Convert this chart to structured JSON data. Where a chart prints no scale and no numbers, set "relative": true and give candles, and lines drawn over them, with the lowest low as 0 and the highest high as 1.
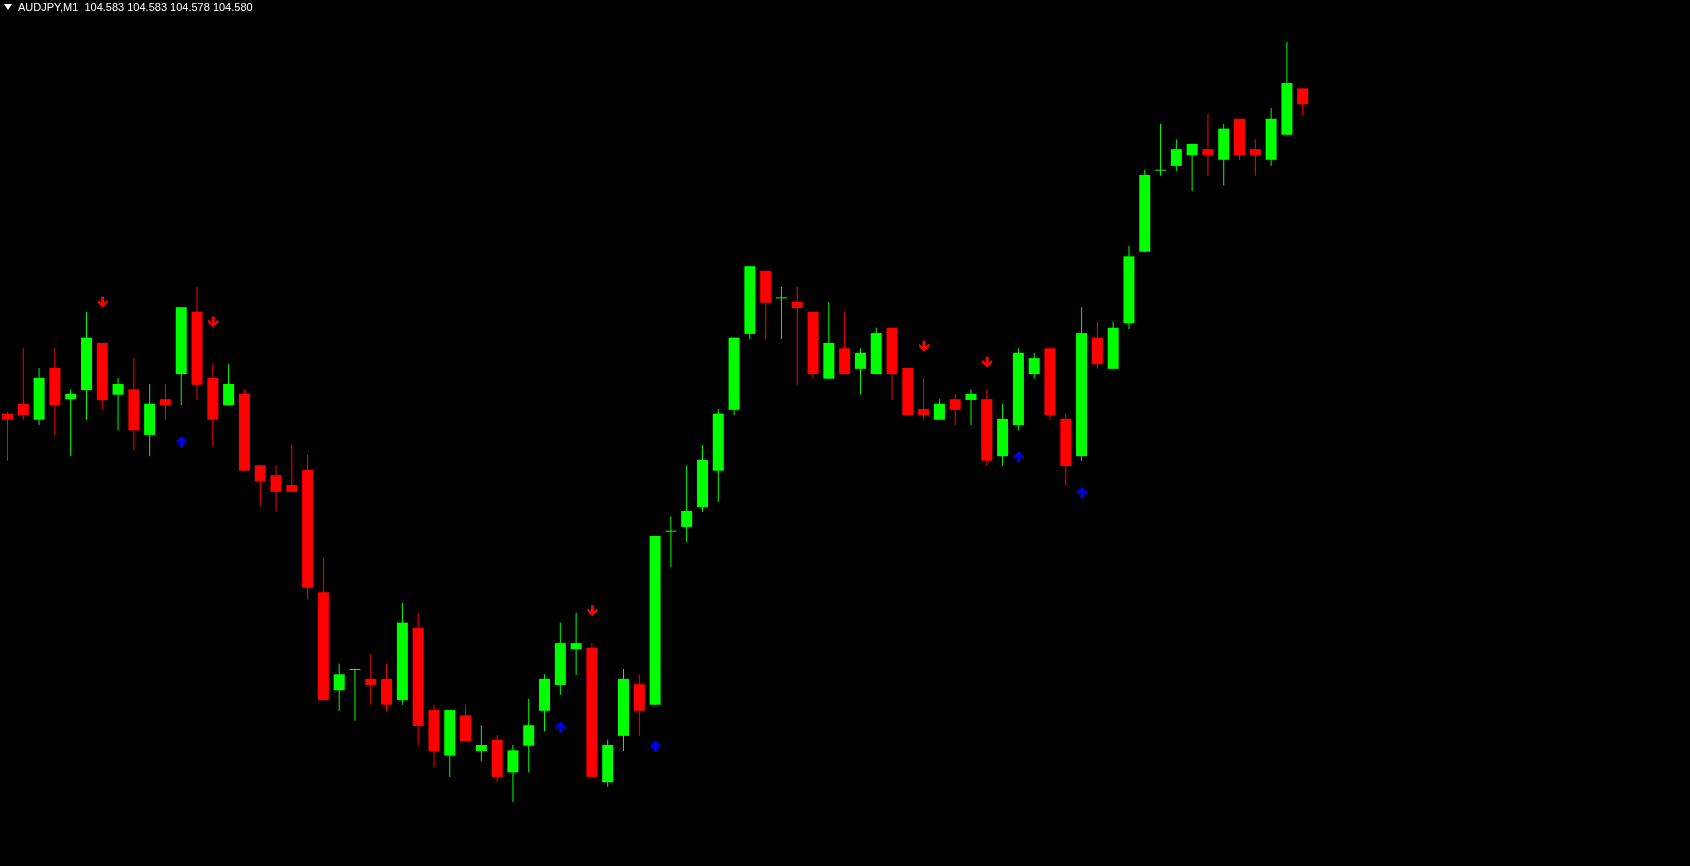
{
  "chart_data": {
    "type": "candlestick",
    "title": "AUDJPY,M1  104.583 104.583 104.578 104.580",
    "relative": true,
    "categories": [
      null,
      null,
      null,
      null,
      null,
      null,
      null,
      null,
      null,
      null,
      null,
      null,
      null,
      null,
      null,
      null,
      null,
      null,
      null,
      null,
      null,
      null,
      null,
      null,
      null,
      null,
      null,
      null,
      null,
      null,
      null,
      null,
      null,
      null,
      null,
      null,
      null,
      null,
      null,
      null,
      null,
      null,
      null,
      null,
      null,
      null,
      null,
      null,
      null,
      null,
      null,
      null,
      null,
      null,
      null,
      null,
      null,
      null,
      null,
      null,
      null,
      null,
      null,
      null,
      null,
      null,
      null,
      null,
      null,
      null,
      null,
      null,
      null,
      null,
      null,
      null,
      null,
      null,
      null,
      null,
      null,
      null,
      null
    ],
    "ohlc": [
      [
        0.511,
        0.513,
        0.449,
        0.503
      ],
      [
        0.524,
        0.597,
        0.503,
        0.509
      ],
      [
        0.503,
        0.571,
        0.496,
        0.558
      ],
      [
        0.571,
        0.597,
        0.483,
        0.522
      ],
      [
        0.53,
        0.543,
        0.455,
        0.537
      ],
      [
        0.542,
        0.645,
        0.503,
        0.611
      ],
      [
        0.604,
        0.604,
        0.516,
        0.529
      ],
      [
        0.536,
        0.558,
        0.489,
        0.55
      ],
      [
        0.543,
        0.584,
        0.462,
        0.489
      ],
      [
        0.483,
        0.55,
        0.455,
        0.524
      ],
      [
        0.53,
        0.55,
        0.503,
        0.522
      ],
      [
        0.563,
        0.651,
        0.522,
        0.651
      ],
      [
        0.645,
        0.678,
        0.529,
        0.549
      ],
      [
        0.558,
        0.576,
        0.468,
        0.503
      ],
      [
        0.522,
        0.576,
        0.522,
        0.55
      ],
      [
        0.537,
        0.543,
        0.436,
        0.436
      ],
      [
        0.443,
        0.443,
        0.389,
        0.422
      ],
      [
        0.43,
        0.443,
        0.382,
        0.408
      ],
      [
        0.417,
        0.47,
        0.408,
        0.408
      ],
      [
        0.437,
        0.457,
        0.267,
        0.282
      ],
      [
        0.276,
        0.322,
        0.134,
        0.134
      ],
      [
        0.147,
        0.182,
        0.12,
        0.168
      ],
      [
        0.175,
        0.175,
        0.107,
        0.175
      ],
      [
        0.162,
        0.195,
        0.128,
        0.154
      ],
      [
        0.162,
        0.182,
        0.12,
        0.128
      ],
      [
        0.134,
        0.262,
        0.128,
        0.236
      ],
      [
        0.229,
        0.249,
        0.074,
        0.1
      ],
      [
        0.121,
        0.128,
        0.046,
        0.067
      ],
      [
        0.061,
        0.121,
        0.033,
        0.121
      ],
      [
        0.114,
        0.128,
        0.08,
        0.08
      ],
      [
        0.067,
        0.101,
        0.054,
        0.075
      ],
      [
        0.082,
        0.088,
        0.026,
        0.033
      ],
      [
        0.039,
        0.075,
        0,
        0.068
      ],
      [
        0.074,
        0.136,
        0.039,
        0.101
      ],
      [
        0.12,
        0.168,
        0.093,
        0.162
      ],
      [
        0.154,
        0.236,
        0.141,
        0.209
      ],
      [
        0.201,
        0.249,
        0.167,
        0.209
      ],
      [
        0.203,
        0.209,
        0.033,
        0.033
      ],
      [
        0.026,
        0.082,
        0.02,
        0.075
      ],
      [
        0.087,
        0.175,
        0.067,
        0.162
      ],
      [
        0.155,
        0.168,
        0.087,
        0.12
      ],
      [
        0.128,
        0.35,
        0.128,
        0.35
      ],
      [
        0.357,
        0.376,
        0.309,
        0.357
      ],
      [
        0.362,
        0.443,
        0.342,
        0.383
      ],
      [
        0.388,
        0.47,
        0.382,
        0.45
      ],
      [
        0.436,
        0.517,
        0.395,
        0.511
      ],
      [
        0.516,
        0.611,
        0.509,
        0.611
      ],
      [
        0.616,
        0.705,
        0.609,
        0.705
      ],
      [
        0.699,
        0.699,
        0.609,
        0.657
      ],
      [
        0.664,
        0.678,
        0.609,
        0.664
      ],
      [
        0.658,
        0.678,
        0.549,
        0.65
      ],
      [
        0.645,
        0.645,
        0.557,
        0.563
      ],
      [
        0.557,
        0.658,
        0.557,
        0.604
      ],
      [
        0.597,
        0.645,
        0.563,
        0.563
      ],
      [
        0.57,
        0.597,
        0.536,
        0.591
      ],
      [
        0.563,
        0.624,
        0.563,
        0.617
      ],
      [
        0.624,
        0.624,
        0.529,
        0.563
      ],
      [
        0.571,
        0.571,
        0.509,
        0.509
      ],
      [
        0.517,
        0.558,
        0.503,
        0.509
      ],
      [
        0.503,
        0.53,
        0.503,
        0.524
      ],
      [
        0.53,
        0.537,
        0.496,
        0.516
      ],
      [
        0.529,
        0.543,
        0.496,
        0.537
      ],
      [
        0.53,
        0.543,
        0.442,
        0.449
      ],
      [
        0.455,
        0.524,
        0.442,
        0.504
      ],
      [
        0.496,
        0.597,
        0.489,
        0.591
      ],
      [
        0.563,
        0.591,
        0.557,
        0.584
      ],
      [
        0.597,
        0.597,
        0.503,
        0.509
      ],
      [
        0.504,
        0.511,
        0.416,
        0.442
      ],
      [
        0.455,
        0.651,
        0.449,
        0.617
      ],
      [
        0.611,
        0.632,
        0.57,
        0.576
      ],
      [
        0.57,
        0.632,
        0.57,
        0.624
      ],
      [
        0.63,
        0.732,
        0.622,
        0.718
      ],
      [
        0.724,
        0.832,
        0.724,
        0.825
      ],
      [
        0.832,
        0.892,
        0.824,
        0.832
      ],
      [
        0.837,
        0.872,
        0.83,
        0.859
      ],
      [
        0.851,
        0.866,
        0.804,
        0.866
      ],
      [
        0.859,
        0.905,
        0.824,
        0.851
      ],
      [
        0.845,
        0.892,
        0.811,
        0.886
      ],
      [
        0.899,
        0.899,
        0.845,
        0.851
      ],
      [
        0.859,
        0.872,
        0.824,
        0.851
      ],
      [
        0.845,
        0.913,
        0.837,
        0.899
      ],
      [
        0.878,
        1,
        0.878,
        0.946
      ],
      [
        0.939,
        0.939,
        0.904,
        0.918
      ]
    ],
    "colors": [
      "#ff0000",
      "#ff0000",
      "#00ff00",
      "#ff0000",
      "#00ff00",
      "#00ff00",
      "#ff0000",
      "#00ff00",
      "#ff0000",
      "#00ff00",
      "#ff0000",
      "#00ff00",
      "#ff0000",
      "#ff0000",
      "#00ff00",
      "#ff0000",
      "#ff0000",
      "#ff0000",
      "#ff0000",
      "#ff0000",
      "#ff0000",
      "#00ff00",
      "#00ff00",
      "#ff0000",
      "#ff0000",
      "#00ff00",
      "#ff0000",
      "#ff0000",
      "#00ff00",
      "#ff0000",
      "#00ff00",
      "#ff0000",
      "#00ff00",
      "#00ff00",
      "#00ff00",
      "#00ff00",
      "#00ff00",
      "#ff0000",
      "#00ff00",
      "#00ff00",
      "#ff0000",
      "#00ff00",
      "#00ff00",
      "#00ff00",
      "#00ff00",
      "#00ff00",
      "#00ff00",
      "#00ff00",
      "#ff0000",
      "#00ff00",
      "#ff0000",
      "#ff0000",
      "#00ff00",
      "#ff0000",
      "#00ff00",
      "#00ff00",
      "#ff0000",
      "#ff0000",
      "#ff0000",
      "#00ff00",
      "#ff0000",
      "#00ff00",
      "#ff0000",
      "#00ff00",
      "#00ff00",
      "#00ff00",
      "#ff0000",
      "#ff0000",
      "#00ff00",
      "#ff0000",
      "#00ff00",
      "#00ff00",
      "#00ff00",
      "#00ff00",
      "#00ff00",
      "#00ff00",
      "#ff0000",
      "#00ff00",
      "#ff0000",
      "#ff0000",
      "#00ff00",
      "#00ff00",
      "#ff0000"
    ],
    "series": [
      {
        "type": "scatter",
        "color": "#ff0000",
        "values": [
          null,
          null,
          null,
          null,
          null,
          null,
          0.657,
          null,
          null,
          null,
          null,
          null,
          null,
          0.631,
          null,
          null,
          null,
          null,
          null,
          null,
          null,
          null,
          null,
          null,
          null,
          null,
          null,
          null,
          null,
          null,
          null,
          null,
          null,
          null,
          null,
          null,
          null,
          0.251,
          null,
          null,
          null,
          null,
          null,
          null,
          null,
          null,
          null,
          null,
          null,
          null,
          null,
          null,
          null,
          null,
          null,
          null,
          null,
          null,
          0.599,
          null,
          null,
          null,
          0.578,
          null,
          null,
          null,
          null,
          null,
          null,
          null,
          null,
          null,
          null,
          null,
          null,
          null,
          null,
          null,
          null,
          null,
          null,
          null,
          null
        ]
      },
      {
        "type": "scatter",
        "color": "#0000ff",
        "values": [
          null,
          null,
          null,
          null,
          null,
          null,
          null,
          null,
          null,
          null,
          null,
          0.475,
          null,
          null,
          null,
          null,
          null,
          null,
          null,
          null,
          null,
          null,
          null,
          null,
          null,
          null,
          null,
          null,
          null,
          null,
          null,
          null,
          null,
          null,
          null,
          0.099,
          null,
          null,
          null,
          null,
          null,
          0.074,
          null,
          null,
          null,
          null,
          null,
          null,
          null,
          null,
          null,
          null,
          null,
          null,
          null,
          null,
          null,
          null,
          null,
          null,
          null,
          null,
          null,
          null,
          0.455,
          null,
          null,
          null,
          0.408,
          null,
          null,
          null,
          null,
          null,
          null,
          null,
          null,
          null,
          null,
          null,
          null,
          null,
          null
        ]
      }
    ]
  }
}
